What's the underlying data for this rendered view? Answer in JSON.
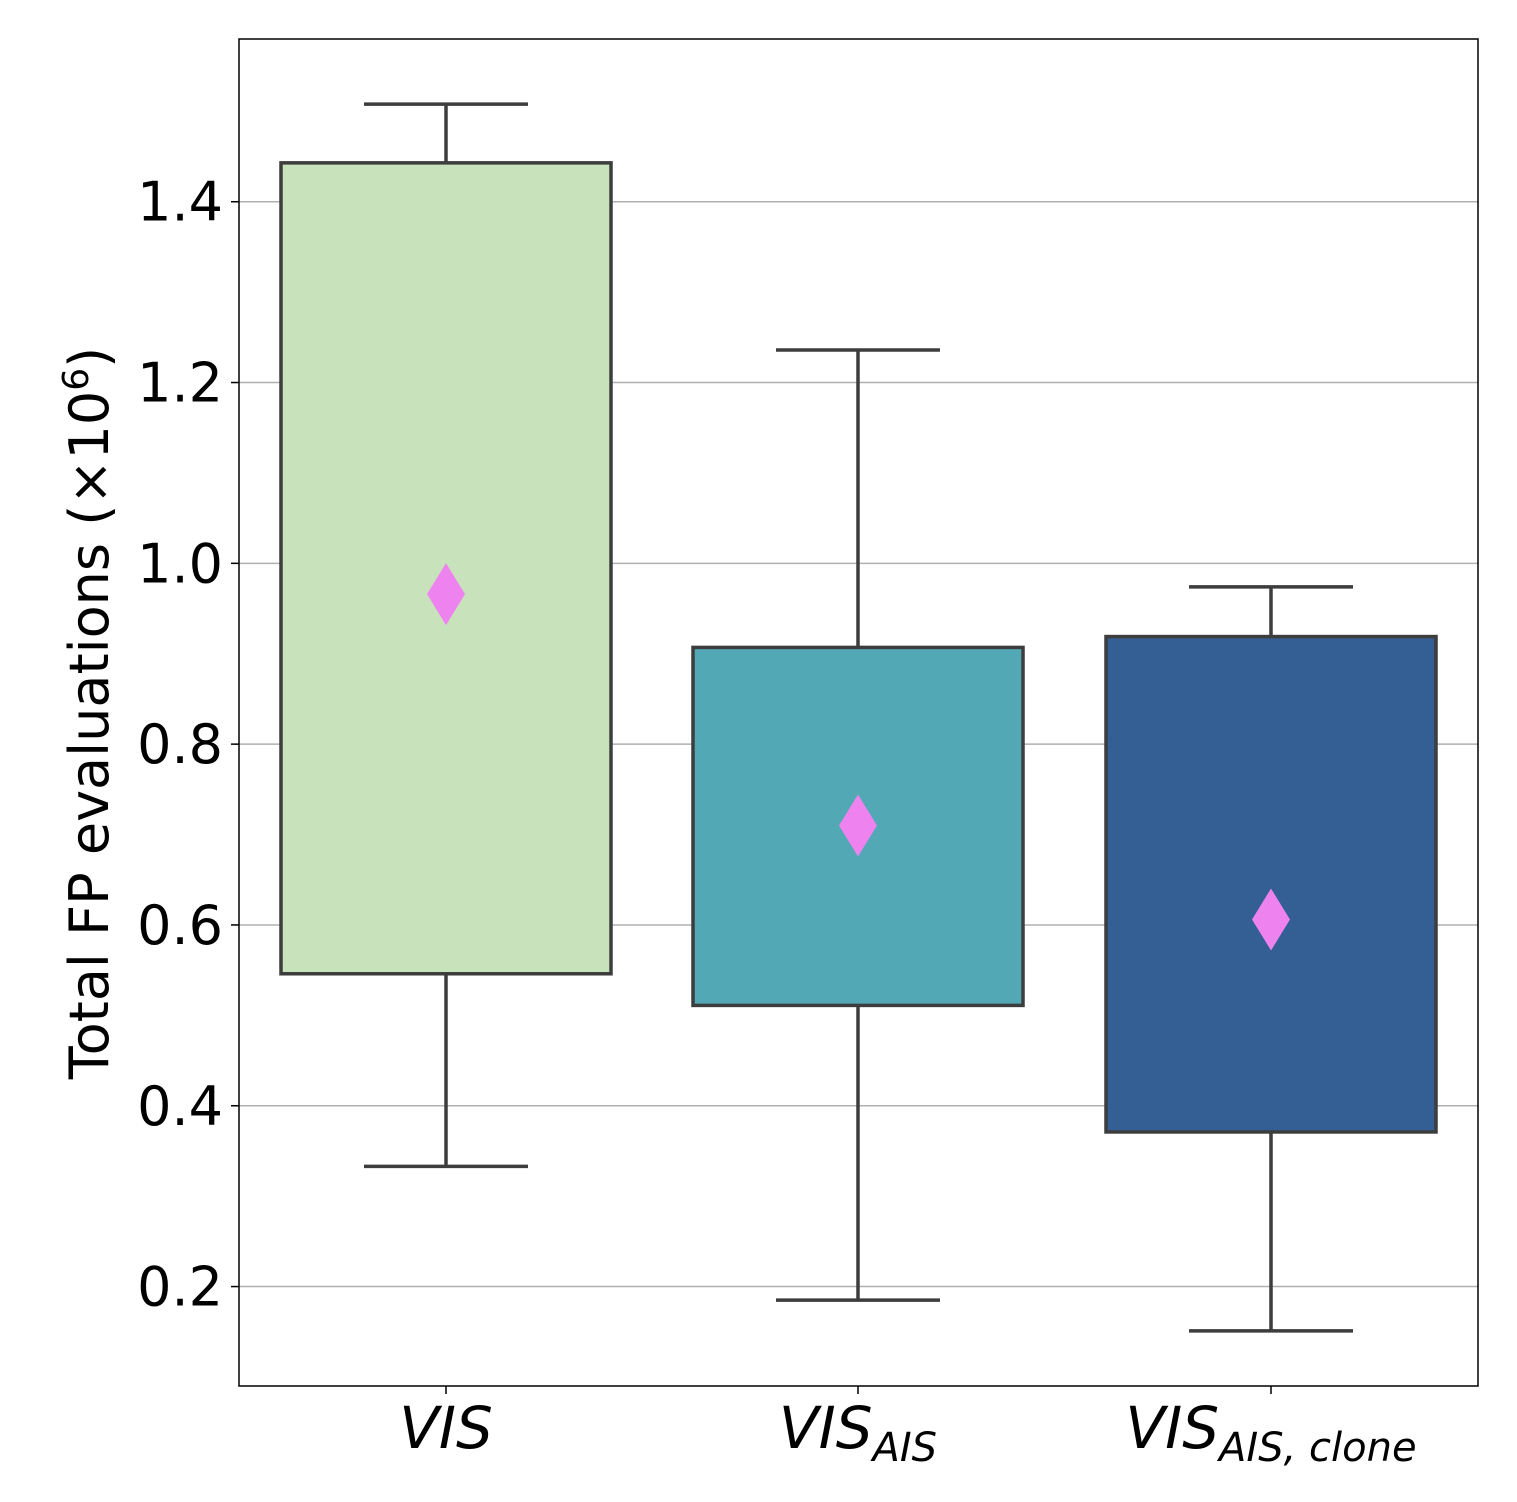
{
  "chart_data": {
    "type": "box",
    "title": "",
    "xlabel": "",
    "ylabel": "Total FP evaluations (×10⁶)",
    "ylabel_parts": {
      "main": "Total FP evaluations (×10",
      "exp": "6",
      "close": ")"
    },
    "ylim": [
      0.09,
      1.58
    ],
    "yticks": [
      0.2,
      0.4,
      0.6,
      0.8,
      1.0,
      1.2,
      1.4
    ],
    "ytick_labels": [
      "0.2",
      "0.4",
      "0.6",
      "0.8",
      "1.0",
      "1.2",
      "1.4"
    ],
    "grid": "horizontal",
    "categories": [
      {
        "base": "VIS",
        "sub": ""
      },
      {
        "base": "VIS",
        "sub": "AIS"
      },
      {
        "base": "VIS",
        "sub": "AIS, clone"
      }
    ],
    "boxes": [
      {
        "whisker_low": 0.333,
        "q1": 0.546,
        "q3": 1.443,
        "whisker_high": 1.508,
        "mean": 0.966,
        "color": "#c8e2bc"
      },
      {
        "whisker_low": 0.185,
        "q1": 0.511,
        "q3": 0.907,
        "whisker_high": 1.236,
        "mean": 0.71,
        "color": "#52a8b4"
      },
      {
        "whisker_low": 0.151,
        "q1": 0.371,
        "q3": 0.919,
        "whisker_high": 0.974,
        "mean": 0.606,
        "color": "#335f94"
      }
    ],
    "mean_marker": {
      "shape": "diamond",
      "color": "#ee82ee"
    },
    "line_color": "#3d3d3d",
    "grid_color": "#b0b0b0"
  }
}
